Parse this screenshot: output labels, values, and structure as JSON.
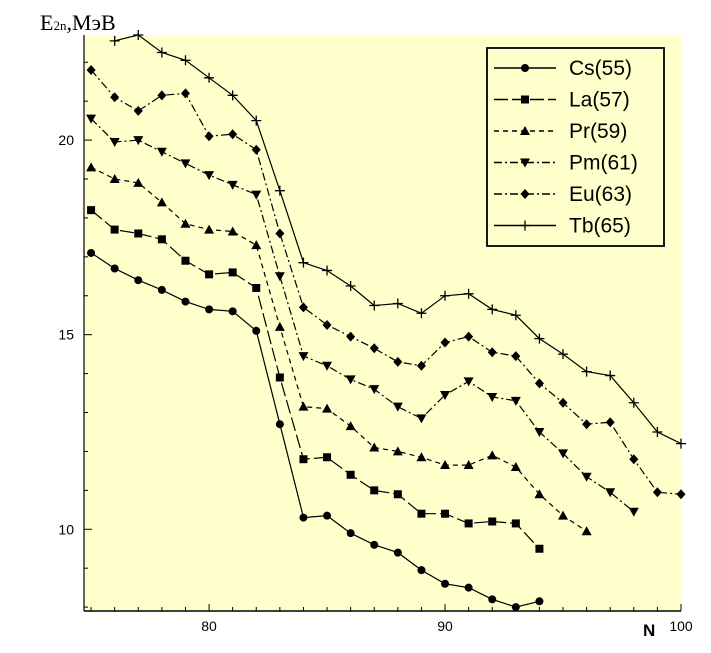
{
  "chart_data": {
    "type": "line",
    "ylabel": "E2n,МэВ",
    "ylabel_main": "E",
    "ylabel_sub": "2n",
    "ylabel_rest": ",МэВ",
    "xlabel": "N",
    "xlim": [
      74.7,
      100
    ],
    "ylim": [
      7.9,
      22.7
    ],
    "xticks": [
      80,
      90,
      100
    ],
    "yticks": [
      10,
      15,
      20
    ],
    "grid": false,
    "legend_position": "top-right",
    "colors": {
      "background": "#ffffcc",
      "lines": "#000000"
    },
    "series": [
      {
        "name": "Cs(55)",
        "marker": "circle",
        "dash": "solid",
        "x": [
          75,
          76,
          77,
          78,
          79,
          80,
          81,
          82,
          83,
          84,
          85,
          86,
          87,
          88,
          89,
          90,
          91,
          92,
          93,
          94
        ],
        "y": [
          17.1,
          16.7,
          16.4,
          16.15,
          15.85,
          15.65,
          15.6,
          15.1,
          12.7,
          10.3,
          10.35,
          9.9,
          9.6,
          9.4,
          8.95,
          8.6,
          8.5,
          8.2,
          8.0,
          8.15
        ]
      },
      {
        "name": "La(57)",
        "marker": "square",
        "dash": "longdash",
        "x": [
          75,
          76,
          77,
          78,
          79,
          80,
          81,
          82,
          83,
          84,
          85,
          86,
          87,
          88,
          89,
          90,
          91,
          92,
          93,
          94
        ],
        "y": [
          18.2,
          17.7,
          17.6,
          17.45,
          16.9,
          16.55,
          16.6,
          16.2,
          13.9,
          11.8,
          11.85,
          11.4,
          11.0,
          10.9,
          10.4,
          10.4,
          10.15,
          10.2,
          10.15,
          9.5
        ]
      },
      {
        "name": "Pr(59)",
        "marker": "triangle-up",
        "dash": "dashed",
        "x": [
          75,
          76,
          77,
          78,
          79,
          80,
          81,
          82,
          83,
          84,
          85,
          86,
          87,
          88,
          89,
          90,
          91,
          92,
          93,
          94,
          95,
          96
        ],
        "y": [
          19.3,
          19.0,
          18.9,
          18.4,
          17.85,
          17.7,
          17.65,
          17.3,
          15.2,
          13.15,
          13.1,
          12.65,
          12.1,
          12.0,
          11.85,
          11.65,
          11.65,
          11.9,
          11.6,
          10.9,
          10.35,
          9.95
        ]
      },
      {
        "name": "Pm(61)",
        "marker": "triangle-down",
        "dash": "dashdot",
        "x": [
          75,
          76,
          77,
          78,
          79,
          80,
          81,
          82,
          83,
          84,
          85,
          86,
          87,
          88,
          89,
          90,
          91,
          92,
          93,
          94,
          95,
          96,
          97,
          98
        ],
        "y": [
          20.55,
          19.95,
          20.0,
          19.7,
          19.4,
          19.1,
          18.85,
          18.6,
          16.5,
          14.45,
          14.2,
          13.85,
          13.6,
          13.15,
          12.85,
          13.45,
          13.8,
          13.4,
          13.3,
          12.5,
          11.95,
          11.35,
          10.95,
          10.45
        ]
      },
      {
        "name": "Eu(63)",
        "marker": "diamond",
        "dash": "dashdot",
        "x": [
          75,
          76,
          77,
          78,
          79,
          80,
          81,
          82,
          83,
          84,
          85,
          86,
          87,
          88,
          89,
          90,
          91,
          92,
          93,
          94,
          95,
          96,
          97,
          98,
          99,
          100
        ],
        "y": [
          21.8,
          21.1,
          20.75,
          21.15,
          21.2,
          20.1,
          20.15,
          19.75,
          17.6,
          15.7,
          15.25,
          14.95,
          14.65,
          14.3,
          14.2,
          14.8,
          14.95,
          14.55,
          14.45,
          13.75,
          13.25,
          12.7,
          12.75,
          11.8,
          10.95,
          10.9
        ]
      },
      {
        "name": "Tb(65)",
        "marker": "plus",
        "dash": "solid",
        "x": [
          76,
          77,
          78,
          79,
          80,
          81,
          82,
          83,
          84,
          85,
          86,
          87,
          88,
          89,
          90,
          91,
          92,
          93,
          94,
          95,
          96,
          97,
          98,
          99,
          100
        ],
        "y": [
          22.55,
          22.7,
          22.25,
          22.05,
          21.6,
          21.15,
          20.5,
          18.7,
          16.85,
          16.65,
          16.25,
          15.75,
          15.8,
          15.55,
          16.0,
          16.05,
          15.65,
          15.5,
          14.9,
          14.5,
          14.05,
          13.95,
          13.25,
          12.5,
          12.2
        ]
      }
    ]
  }
}
